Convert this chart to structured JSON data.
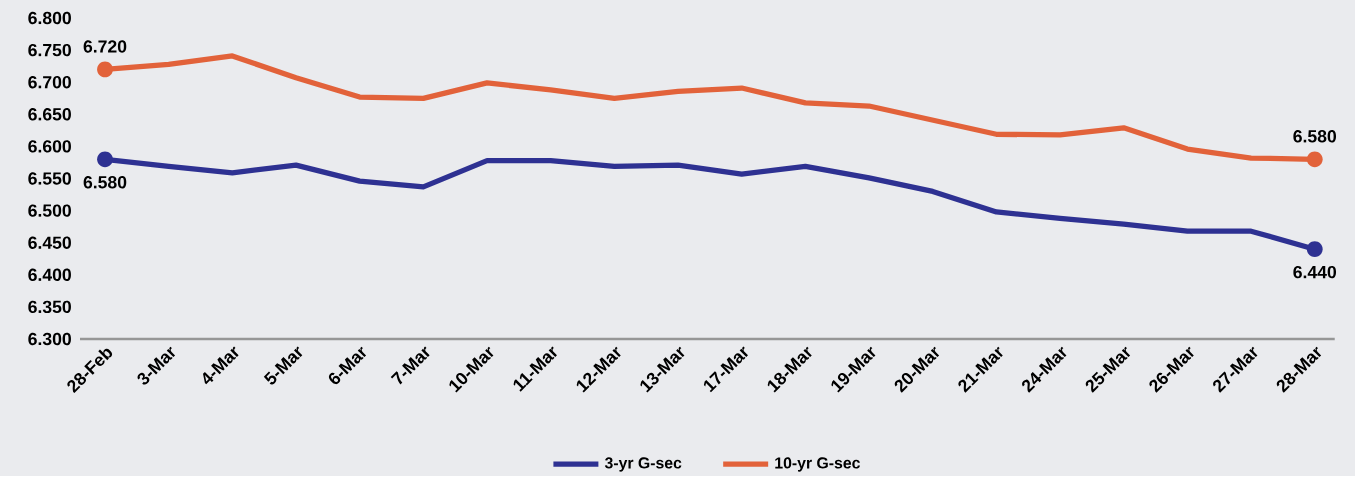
{
  "chart_data": {
    "type": "line",
    "categories": [
      "28-Feb",
      "3-Mar",
      "4-Mar",
      "5-Mar",
      "6-Mar",
      "7-Mar",
      "10-Mar",
      "11-Mar",
      "12-Mar",
      "13-Mar",
      "17-Mar",
      "18-Mar",
      "19-Mar",
      "20-Mar",
      "21-Mar",
      "24-Mar",
      "25-Mar",
      "26-Mar",
      "27-Mar",
      "28-Mar"
    ],
    "series": [
      {
        "name": "3-yr G-sec",
        "color": "#2e3192",
        "values": [
          6.58,
          6.569,
          6.559,
          6.571,
          6.546,
          6.537,
          6.578,
          6.578,
          6.569,
          6.571,
          6.557,
          6.569,
          6.551,
          6.53,
          6.498,
          6.488,
          6.479,
          6.468,
          6.468,
          6.44
        ],
        "value_labels": [
          "6.580",
          null,
          null,
          null,
          null,
          null,
          null,
          null,
          null,
          null,
          null,
          null,
          null,
          null,
          null,
          null,
          null,
          null,
          null,
          "6.440"
        ]
      },
      {
        "name": "10-yr G-sec",
        "color": "#e2623a",
        "values": [
          6.72,
          6.728,
          6.741,
          6.707,
          6.677,
          6.675,
          6.699,
          6.688,
          6.675,
          6.686,
          6.691,
          6.668,
          6.663,
          6.641,
          6.619,
          6.618,
          6.629,
          6.596,
          6.582,
          6.58
        ],
        "value_labels": [
          "6.720",
          null,
          null,
          null,
          null,
          null,
          null,
          null,
          null,
          null,
          null,
          null,
          null,
          null,
          null,
          null,
          null,
          null,
          null,
          "6.580"
        ]
      }
    ],
    "ylim": [
      6.3,
      6.8
    ],
    "yticks": [
      {
        "value": 6.3,
        "label": "6.300"
      },
      {
        "value": 6.35,
        "label": "6.350"
      },
      {
        "value": 6.4,
        "label": "6.400"
      },
      {
        "value": 6.45,
        "label": "6.450"
      },
      {
        "value": 6.5,
        "label": "6.500"
      },
      {
        "value": 6.55,
        "label": "6.550"
      },
      {
        "value": 6.6,
        "label": "6.600"
      },
      {
        "value": 6.65,
        "label": "6.650"
      },
      {
        "value": 6.7,
        "label": "6.700"
      },
      {
        "value": 6.75,
        "label": "6.750"
      },
      {
        "value": 6.8,
        "label": "6.800"
      }
    ],
    "grid": false,
    "legend": "bottom"
  }
}
